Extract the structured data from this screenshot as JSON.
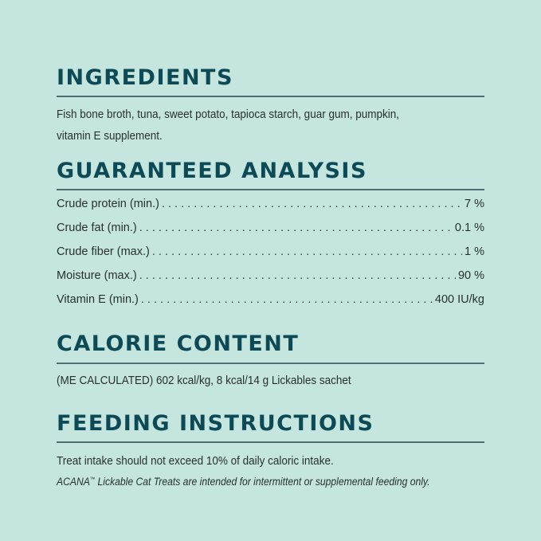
{
  "ingredients": {
    "heading": "INGREDIENTS",
    "line1": "Fish bone broth, tuna, sweet potato, tapioca starch, guar gum, pumpkin,",
    "line2": "vitamin E supplement."
  },
  "analysis": {
    "heading": "GUARANTEED ANALYSIS",
    "rows": [
      {
        "label": "Crude protein (min.)",
        "value": "7 %"
      },
      {
        "label": "Crude fat (min.)",
        "value": "0.1 %"
      },
      {
        "label": "Crude fiber (max.)",
        "value": "1 %"
      },
      {
        "label": "Moisture (max.)",
        "value": "90 %"
      },
      {
        "label": "Vitamin E (min.)",
        "value": "400 IU/kg"
      }
    ]
  },
  "calorie": {
    "heading": "CALORIE CONTENT",
    "text": "(ME CALCULATED) 602 kcal/kg, 8 kcal/14 g Lickables sachet"
  },
  "feeding": {
    "heading": "FEEDING INSTRUCTIONS",
    "text": "Treat intake should not exceed 10% of daily caloric intake.",
    "note_brand": "ACANA",
    "note_tm": "™",
    "note_rest": " Lickable Cat Treats are intended for intermittent or supplemental feeding only."
  },
  "colors": {
    "background": "#c4e6df",
    "heading": "#0e4a56"
  }
}
